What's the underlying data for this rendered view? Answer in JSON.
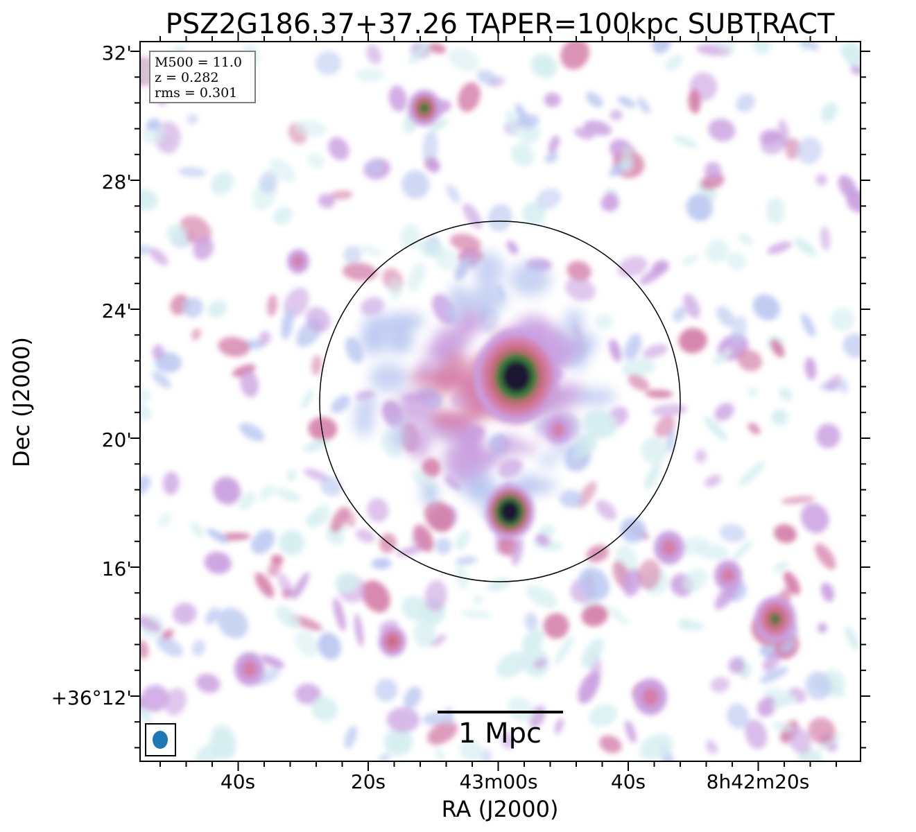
{
  "title": "PSZ2G186.37+37.26 TAPER=100kpc SUBTRACT",
  "xlabel": "RA (J2000)",
  "ylabel": "Dec (J2000)",
  "x_ticks": [
    "40s",
    "20s",
    "43m00s",
    "40s",
    "8h42m20s"
  ],
  "y_ticks": [
    "32'",
    "28'",
    "24'",
    "20'",
    "16'",
    "+36°12'"
  ],
  "info_box": {
    "lines": [
      "M500 = 11.0",
      "z = 0.282",
      "rms = 0.301"
    ]
  },
  "scale_bar": {
    "label": "1 Mpc"
  },
  "colors": {
    "frame": "#000000",
    "beam": "#1f77b4",
    "colormap": [
      "#ffffff",
      "#d5eef0",
      "#bcc8f0",
      "#c9a0e0",
      "#d47ea8",
      "#c56c78",
      "#3a7a3a",
      "#1e1430"
    ]
  }
}
